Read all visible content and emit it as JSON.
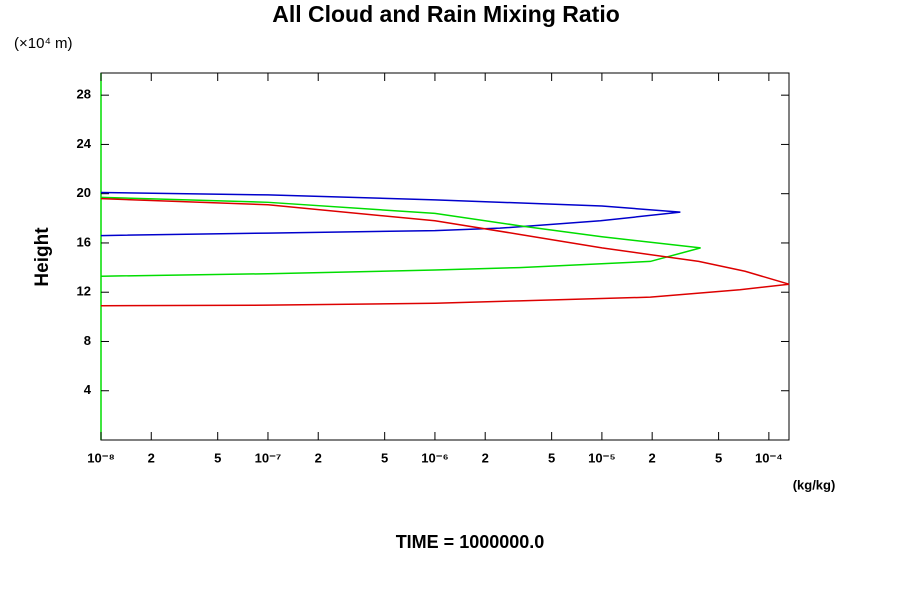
{
  "chart_data": {
    "type": "line",
    "title": "All Cloud and Rain Mixing Ratio",
    "y_unit": "(×10⁴ m)",
    "ylabel": "Height",
    "x_unit": "(kg/kg)",
    "footer": "TIME = 1000000.0",
    "xscale": "log",
    "xlim": [
      1e-08,
      0.000132
    ],
    "ylim": [
      0,
      29.8
    ],
    "xticks": [
      {
        "value": 1e-08,
        "label": "10⁻⁸"
      },
      {
        "value": 2e-08,
        "label": "2"
      },
      {
        "value": 5e-08,
        "label": "5"
      },
      {
        "value": 1e-07,
        "label": "10⁻⁷"
      },
      {
        "value": 2e-07,
        "label": "2"
      },
      {
        "value": 5e-07,
        "label": "5"
      },
      {
        "value": 1e-06,
        "label": "10⁻⁶"
      },
      {
        "value": 2e-06,
        "label": "2"
      },
      {
        "value": 5e-06,
        "label": "5"
      },
      {
        "value": 1e-05,
        "label": "10⁻⁵"
      },
      {
        "value": 2e-05,
        "label": "2"
      },
      {
        "value": 5e-05,
        "label": "5"
      },
      {
        "value": 0.0001,
        "label": "10⁻⁴"
      }
    ],
    "yticks": [
      4,
      8,
      12,
      16,
      20,
      24,
      28
    ],
    "series": [
      {
        "color": "#0000cc",
        "x": [
          1e-08,
          1e-07,
          1e-06,
          1e-05,
          2.95e-05,
          9.8e-06,
          2.45e-06,
          1e-06,
          1e-07,
          1e-08
        ],
        "values": [
          20.1,
          19.9,
          19.5,
          19.0,
          18.5,
          17.8,
          17.2,
          17.0,
          16.8,
          16.6
        ]
      },
      {
        "color": "#00dd00",
        "x": [
          1e-08,
          1e-07,
          1e-06,
          3.2e-06,
          1e-05,
          3.9e-05,
          1.95e-05,
          3.2e-06,
          1e-06,
          1e-07,
          1e-08
        ],
        "values": [
          19.7,
          19.3,
          18.4,
          17.4,
          16.5,
          15.6,
          14.5,
          14.0,
          13.8,
          13.5,
          13.3
        ]
      },
      {
        "color": "#dd0000",
        "x": [
          1e-08,
          1e-07,
          1e-06,
          3.2e-06,
          1e-05,
          3.8e-05,
          7.2e-05,
          0.000132,
          6.7e-05,
          1.95e-05,
          3.2e-06,
          1e-06,
          1e-07,
          1e-08
        ],
        "values": [
          19.6,
          19.1,
          17.8,
          16.7,
          15.6,
          14.5,
          13.7,
          12.65,
          12.2,
          11.6,
          11.3,
          11.1,
          10.95,
          10.9
        ]
      }
    ]
  }
}
